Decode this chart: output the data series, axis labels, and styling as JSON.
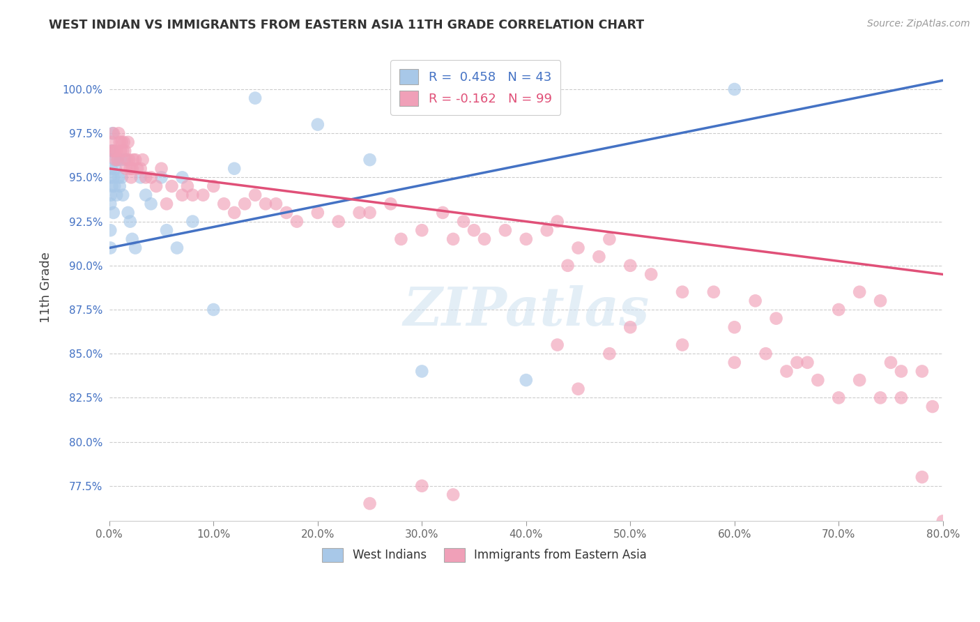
{
  "title": "WEST INDIAN VS IMMIGRANTS FROM EASTERN ASIA 11TH GRADE CORRELATION CHART",
  "source": "Source: ZipAtlas.com",
  "ylabel": "11th Grade",
  "y_ticks": [
    77.5,
    80.0,
    82.5,
    85.0,
    87.5,
    90.0,
    92.5,
    95.0,
    97.5,
    100.0
  ],
  "x_ticks": [
    0.0,
    10.0,
    20.0,
    30.0,
    40.0,
    50.0,
    60.0,
    70.0,
    80.0
  ],
  "xlim": [
    0.0,
    80.0
  ],
  "ylim": [
    75.5,
    102.0
  ],
  "watermark_text": "ZIPatlas",
  "legend_blue_label": "R =  0.458   N = 43",
  "legend_pink_label": "R = -0.162   N = 99",
  "legend_bottom_blue": "West Indians",
  "legend_bottom_pink": "Immigrants from Eastern Asia",
  "blue_color": "#a8c8e8",
  "pink_color": "#f0a0b8",
  "blue_line_color": "#4472c4",
  "pink_line_color": "#e05078",
  "blue_line_x0": 0.0,
  "blue_line_y0": 91.0,
  "blue_line_x1": 80.0,
  "blue_line_y1": 100.5,
  "pink_line_x0": 0.0,
  "pink_line_y0": 95.5,
  "pink_line_x1": 80.0,
  "pink_line_y1": 89.5,
  "blue_points_x": [
    0.1,
    0.1,
    0.1,
    0.15,
    0.15,
    0.2,
    0.2,
    0.25,
    0.3,
    0.3,
    0.4,
    0.4,
    0.5,
    0.5,
    0.6,
    0.7,
    0.8,
    0.9,
    1.0,
    1.1,
    1.2,
    1.3,
    1.5,
    1.8,
    2.0,
    2.2,
    2.5,
    3.0,
    3.5,
    4.0,
    5.0,
    5.5,
    6.5,
    7.0,
    8.0,
    10.0,
    12.0,
    14.0,
    20.0,
    25.0,
    30.0,
    40.0,
    60.0
  ],
  "blue_points_y": [
    93.5,
    92.0,
    91.0,
    95.0,
    94.0,
    96.5,
    95.5,
    94.5,
    97.5,
    96.5,
    95.0,
    93.0,
    96.0,
    94.5,
    95.5,
    94.0,
    96.0,
    95.0,
    94.5,
    96.0,
    95.0,
    94.0,
    96.0,
    93.0,
    92.5,
    91.5,
    91.0,
    95.0,
    94.0,
    93.5,
    95.0,
    92.0,
    91.0,
    95.0,
    92.5,
    87.5,
    95.5,
    99.5,
    98.0,
    96.0,
    84.0,
    83.5,
    100.0
  ],
  "pink_points_x": [
    0.2,
    0.3,
    0.4,
    0.5,
    0.6,
    0.7,
    0.8,
    0.9,
    1.0,
    1.1,
    1.2,
    1.3,
    1.4,
    1.5,
    1.6,
    1.7,
    1.8,
    1.9,
    2.0,
    2.1,
    2.2,
    2.3,
    2.5,
    2.7,
    3.0,
    3.2,
    3.5,
    4.0,
    4.5,
    5.0,
    5.5,
    6.0,
    7.0,
    7.5,
    8.0,
    9.0,
    10.0,
    11.0,
    12.0,
    13.0,
    14.0,
    15.0,
    16.0,
    17.0,
    18.0,
    20.0,
    22.0,
    24.0,
    25.0,
    27.0,
    28.0,
    30.0,
    32.0,
    33.0,
    34.0,
    35.0,
    36.0,
    38.0,
    40.0,
    42.0,
    43.0,
    44.0,
    45.0,
    47.0,
    48.0,
    50.0,
    52.0,
    55.0,
    58.0,
    60.0,
    62.0,
    64.0,
    66.0,
    68.0,
    70.0,
    72.0,
    74.0,
    75.0,
    76.0,
    78.0,
    79.0,
    80.0,
    50.0,
    55.0,
    60.0,
    63.0,
    65.0,
    67.0,
    70.0,
    72.0,
    74.0,
    76.0,
    78.0,
    43.0,
    45.0,
    48.0,
    30.0,
    33.0,
    25.0
  ],
  "pink_points_y": [
    97.0,
    96.5,
    97.5,
    96.5,
    96.0,
    96.5,
    96.0,
    97.5,
    97.0,
    96.5,
    97.0,
    96.5,
    97.0,
    96.5,
    95.5,
    96.0,
    97.0,
    96.0,
    95.5,
    95.0,
    95.5,
    96.0,
    96.0,
    95.5,
    95.5,
    96.0,
    95.0,
    95.0,
    94.5,
    95.5,
    93.5,
    94.5,
    94.0,
    94.5,
    94.0,
    94.0,
    94.5,
    93.5,
    93.0,
    93.5,
    94.0,
    93.5,
    93.5,
    93.0,
    92.5,
    93.0,
    92.5,
    93.0,
    93.0,
    93.5,
    91.5,
    92.0,
    93.0,
    91.5,
    92.5,
    92.0,
    91.5,
    92.0,
    91.5,
    92.0,
    92.5,
    90.0,
    91.0,
    90.5,
    91.5,
    90.0,
    89.5,
    88.5,
    88.5,
    86.5,
    88.0,
    87.0,
    84.5,
    83.5,
    87.5,
    88.5,
    88.0,
    84.5,
    82.5,
    84.0,
    82.0,
    75.5,
    86.5,
    85.5,
    84.5,
    85.0,
    84.0,
    84.5,
    82.5,
    83.5,
    82.5,
    84.0,
    78.0,
    85.5,
    83.0,
    85.0,
    77.5,
    77.0,
    76.5
  ]
}
